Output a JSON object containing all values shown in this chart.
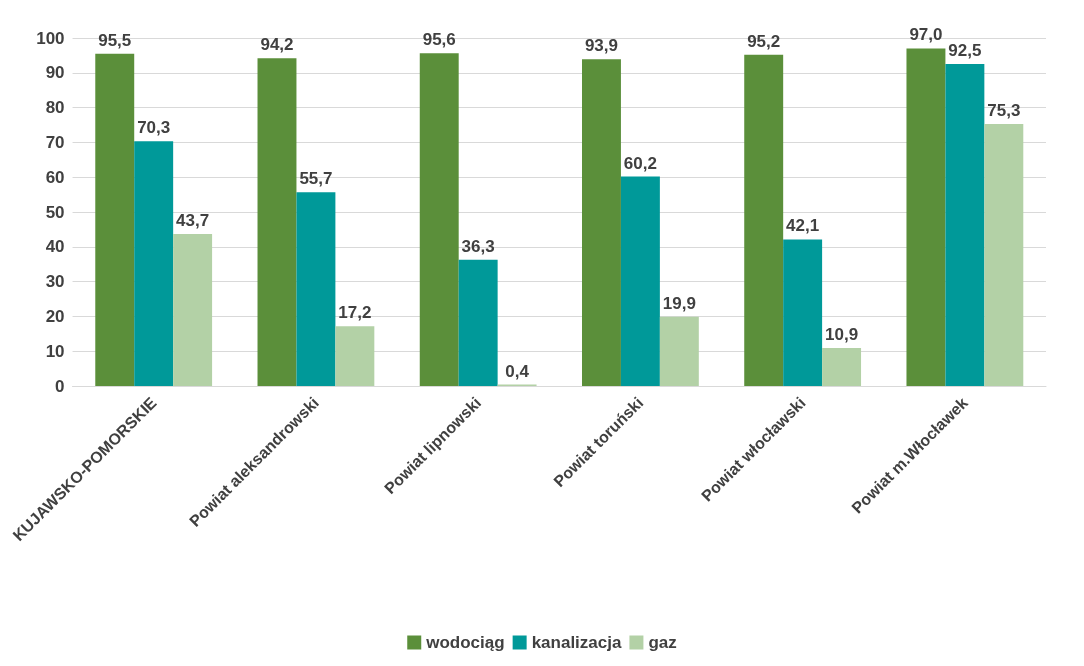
{
  "chart_data": {
    "type": "bar",
    "categories": [
      "KUJAWSKO-POMORSKIE",
      "Powiat aleksandrowski",
      "Powiat lipnowski",
      "Powiat toruński",
      "Powiat włocławski",
      "Powiat m.Włocławek"
    ],
    "series": [
      {
        "name": "wodociąg",
        "color": "#5b8f3a",
        "values": [
          95.5,
          94.2,
          95.6,
          93.9,
          95.2,
          97.0
        ],
        "value_labels": [
          "95,5",
          "94,2",
          "95,6",
          "93,9",
          "95,2",
          "97,0"
        ]
      },
      {
        "name": "kanalizacja",
        "color": "#009999",
        "values": [
          70.3,
          55.7,
          36.3,
          60.2,
          42.1,
          92.5
        ],
        "value_labels": [
          "70,3",
          "55,7",
          "36,3",
          "60,2",
          "42,1",
          "92,5"
        ]
      },
      {
        "name": "gaz",
        "color": "#b3d1a6",
        "values": [
          43.7,
          17.2,
          0.4,
          19.9,
          10.9,
          75.3
        ],
        "value_labels": [
          "43,7",
          "17,2",
          "0,4",
          "19,9",
          "10,9",
          "75,3"
        ]
      }
    ],
    "ylim": [
      0,
      100
    ],
    "yticks": [
      0,
      10,
      20,
      30,
      40,
      50,
      60,
      70,
      80,
      90,
      100
    ],
    "grid": "y",
    "legend": "bottom"
  }
}
